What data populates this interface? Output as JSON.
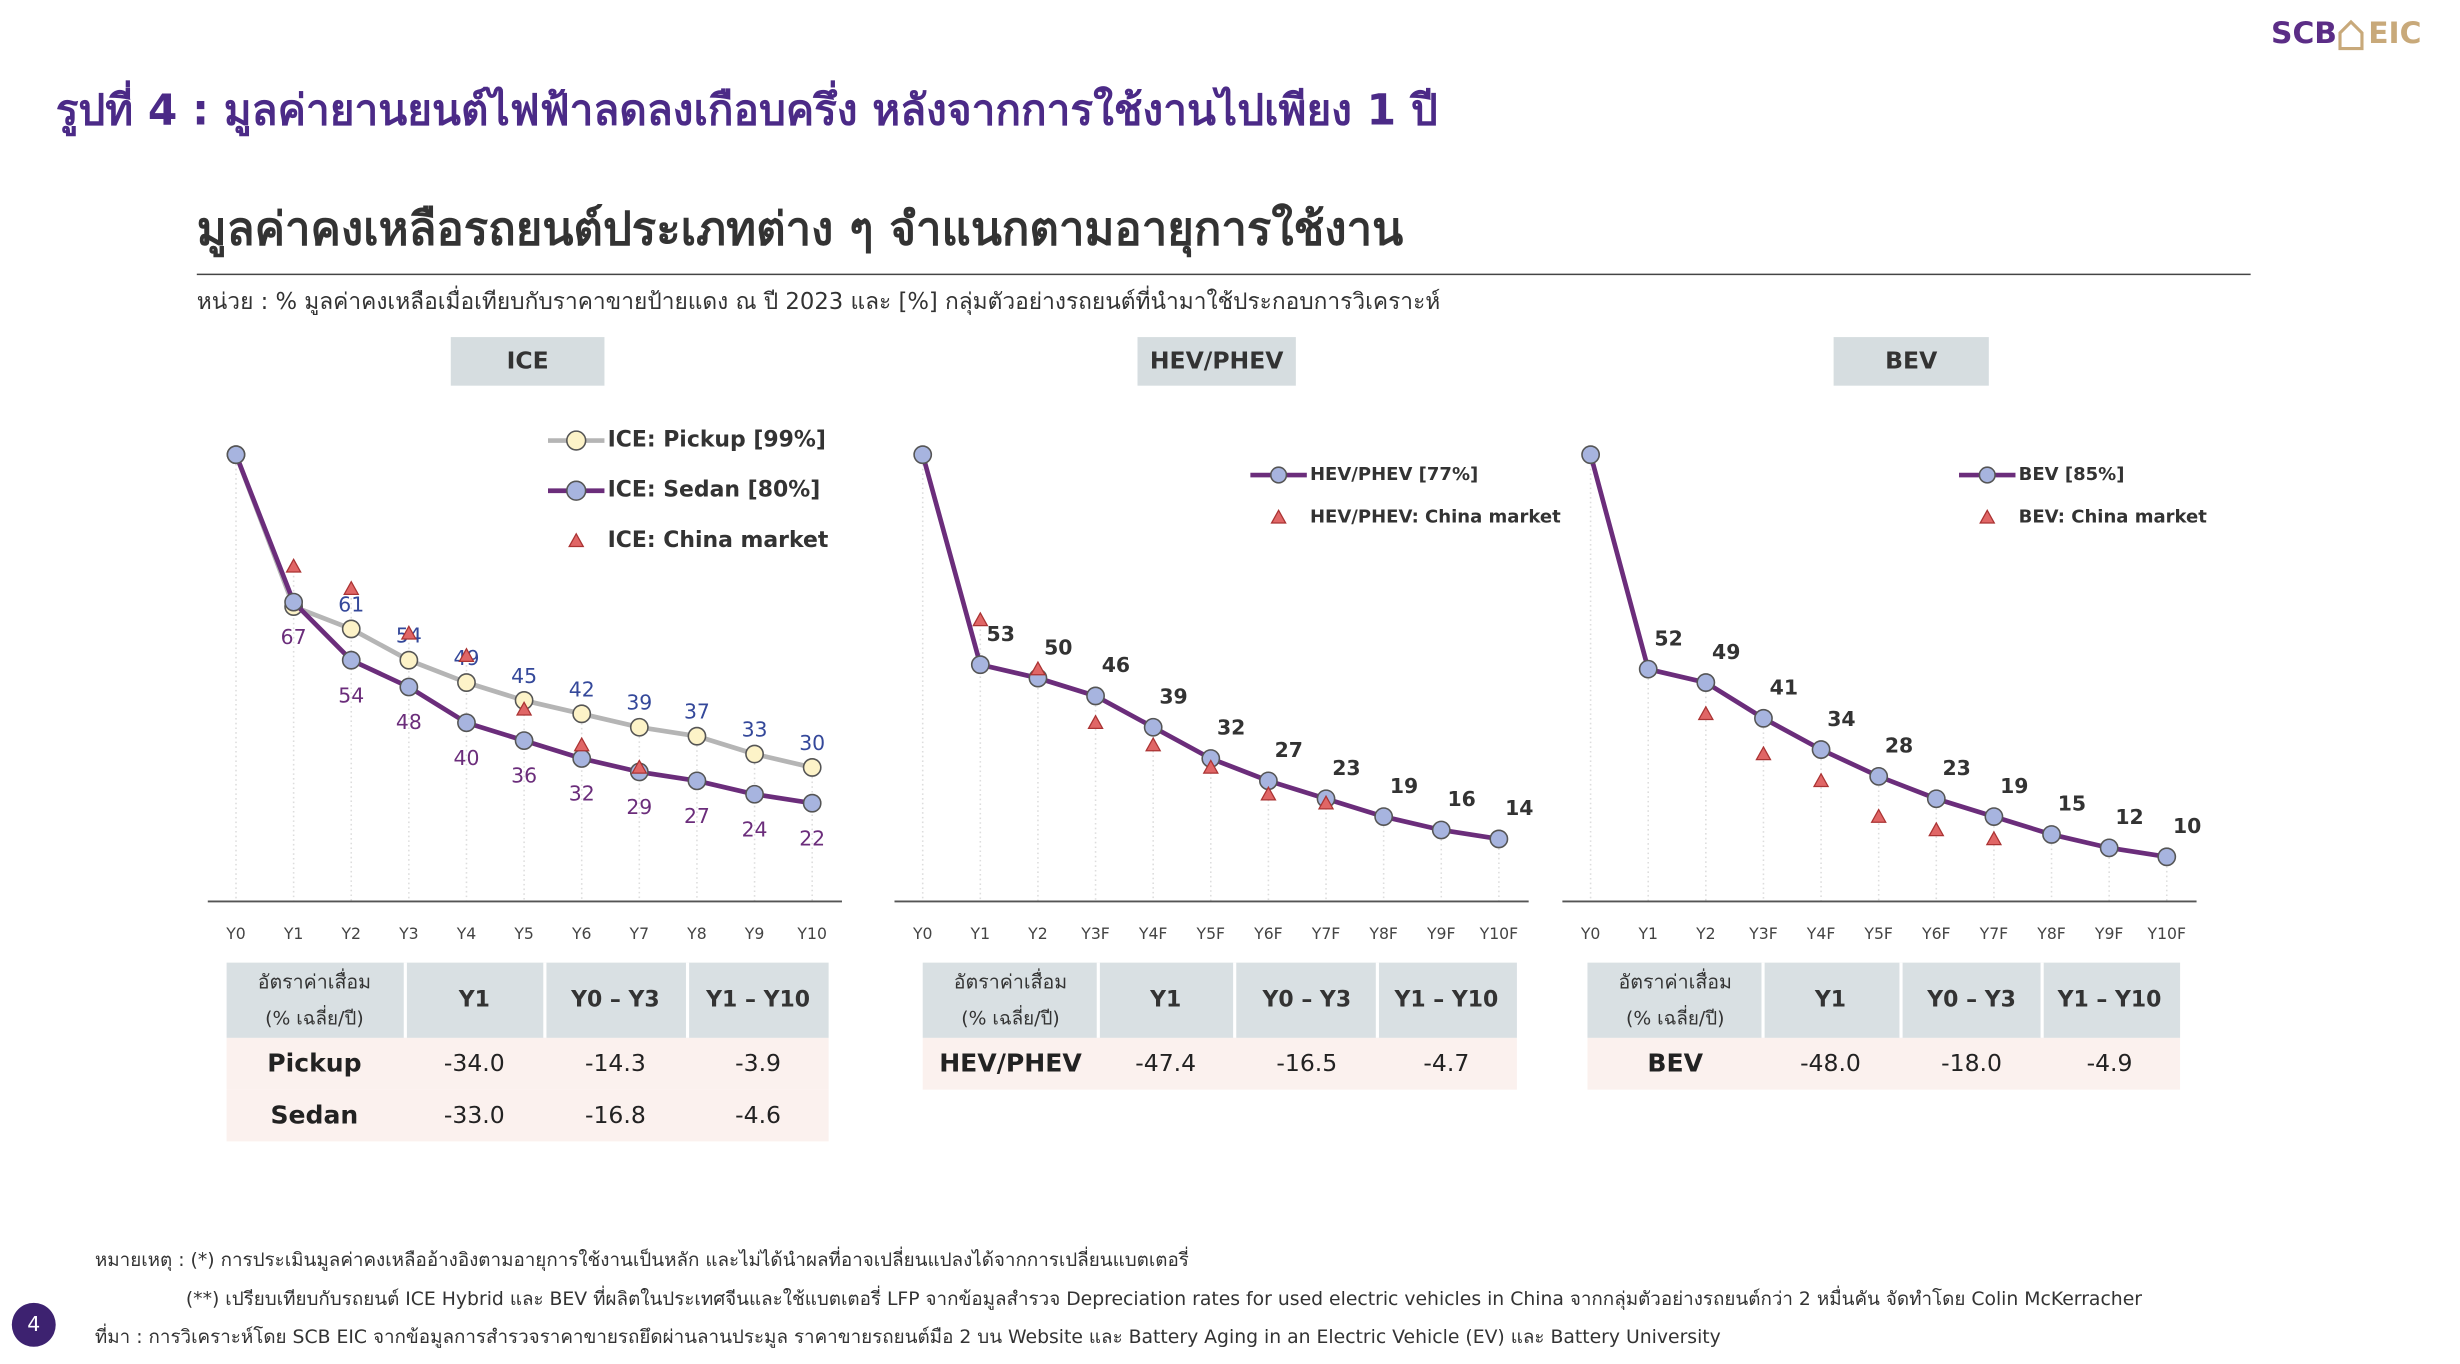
{
  "logo": {
    "left": "SCB",
    "right": "EIC"
  },
  "title": "รูปที่ 4 : มูลค่ายานยนต์ไฟฟ้าลดลงเกือบครึ่ง หลังจากการใช้งานไปเพียง 1 ปี",
  "heading": "มูลค่าคงเหลือรถยนต์ประเภทต่าง ๆ จำแนกตามอายุการใช้งาน",
  "unit": "หน่วย : % มูลค่าคงเหลือเมื่อเทียบกับราคาขายป้ายแดง ณ ปี 2023 และ [%] กลุ่มตัวอย่างรถยนต์ที่นำมาใช้ประกอบการวิเคราะห์",
  "chart_data": [
    {
      "type": "line",
      "title": "ICE",
      "categories": [
        "Y0",
        "Y1",
        "Y2",
        "Y3",
        "Y4",
        "Y5",
        "Y6",
        "Y7",
        "Y8",
        "Y9",
        "Y10"
      ],
      "ylim": [
        0,
        100
      ],
      "series": [
        {
          "name": "ICE: Pickup [99%]",
          "color": "#b5b5b5",
          "marker": "circle",
          "marker_color": "#fdf3c8",
          "label_color": "#34489a",
          "values": [
            100,
            66,
            61,
            54,
            49,
            45,
            42,
            39,
            37,
            33,
            30
          ],
          "value_labels": [
            null,
            null,
            "61",
            "54",
            "49",
            "45",
            "42",
            "39",
            "37",
            "33",
            "30"
          ]
        },
        {
          "name": "ICE: Sedan [80%]",
          "color": "#6b2d7b",
          "marker": "circle",
          "marker_color": "#a7b4df",
          "label_color": "#6b2d7b",
          "values": [
            100,
            67,
            54,
            48,
            40,
            36,
            32,
            29,
            27,
            24,
            22
          ],
          "value_labels": [
            null,
            "67",
            "54",
            "48",
            "40",
            "36",
            "32",
            "29",
            "27",
            "24",
            "22"
          ]
        },
        {
          "name": "ICE: China market",
          "color": "#e06666",
          "marker": "triangle",
          "values": [
            null,
            75,
            70,
            60,
            55,
            43,
            35,
            30,
            null,
            null,
            null
          ]
        }
      ]
    },
    {
      "type": "line",
      "title": "HEV/PHEV",
      "categories": [
        "Y0",
        "Y1",
        "Y2",
        "Y3F",
        "Y4F",
        "Y5F",
        "Y6F",
        "Y7F",
        "Y8F",
        "Y9F",
        "Y10F"
      ],
      "ylim": [
        0,
        100
      ],
      "series": [
        {
          "name": "HEV/PHEV [77%]",
          "color": "#6b2d7b",
          "marker": "circle",
          "marker_color": "#a7b4df",
          "label_color": "#333333",
          "values": [
            100,
            53,
            50,
            46,
            39,
            32,
            27,
            23,
            19,
            16,
            14
          ],
          "value_labels": [
            null,
            "53",
            "50",
            "46",
            "39",
            "32",
            "27",
            "23",
            "19",
            "16",
            "14"
          ]
        },
        {
          "name": "HEV/PHEV: China market",
          "color": "#e06666",
          "marker": "triangle",
          "values": [
            null,
            63,
            52,
            40,
            35,
            30,
            24,
            22,
            null,
            null,
            null
          ]
        }
      ]
    },
    {
      "type": "line",
      "title": "BEV",
      "categories": [
        "Y0",
        "Y1",
        "Y2",
        "Y3F",
        "Y4F",
        "Y5F",
        "Y6F",
        "Y7F",
        "Y8F",
        "Y9F",
        "Y10F"
      ],
      "ylim": [
        0,
        100
      ],
      "series": [
        {
          "name": "BEV [85%]",
          "color": "#6b2d7b",
          "marker": "circle",
          "marker_color": "#a7b4df",
          "label_color": "#333333",
          "values": [
            100,
            52,
            49,
            41,
            34,
            28,
            23,
            19,
            15,
            12,
            10
          ],
          "value_labels": [
            null,
            "52",
            "49",
            "41",
            "34",
            "28",
            "23",
            "19",
            "15",
            "12",
            "10"
          ]
        },
        {
          "name": "BEV: China market",
          "color": "#e06666",
          "marker": "triangle",
          "values": [
            null,
            null,
            42,
            33,
            27,
            19,
            16,
            14,
            null,
            null,
            null
          ]
        }
      ]
    }
  ],
  "tables": [
    {
      "header": [
        "อัตราค่าเสื่อม",
        "(% เฉลี่ย/ปี)",
        "Y1",
        "Y0 – Y3",
        "Y1 – Y10"
      ],
      "rows": [
        [
          "Pickup",
          "-34.0",
          "-14.3",
          "-3.9"
        ],
        [
          "Sedan",
          "-33.0",
          "-16.8",
          "-4.6"
        ]
      ]
    },
    {
      "header": [
        "อัตราค่าเสื่อม",
        "(% เฉลี่ย/ปี)",
        "Y1",
        "Y0 – Y3",
        "Y1 – Y10"
      ],
      "rows": [
        [
          "HEV/PHEV",
          "-47.4",
          "-16.5",
          "-4.7"
        ]
      ]
    },
    {
      "header": [
        "อัตราค่าเสื่อม",
        "(% เฉลี่ย/ปี)",
        "Y1",
        "Y0 – Y3",
        "Y1 – Y10"
      ],
      "rows": [
        [
          "BEV",
          "-48.0",
          "-18.0",
          "-4.9"
        ]
      ]
    }
  ],
  "notes": [
    "หมายเหตุ : (*) การประเมินมูลค่าคงเหลืออ้างอิงตามอายุการใช้งานเป็นหลัก และไม่ได้นำผลที่อาจเปลี่ยนแปลงได้จากการเปลี่ยนแบตเตอรี่",
    "(**)  เปรียบเทียบกับรถยนต์ ICE Hybrid และ BEV ที่ผลิตในประเทศจีนและใช้แบตเตอรี่ LFP จากข้อมูลสำรวจ Depreciation rates for used electric vehicles in China จากกลุ่มตัวอย่างรถยนต์กว่า 2 หมื่นคัน จัดทำโดย Colin McKerracher",
    "ที่มา : การวิเคราะห์โดย SCB EIC จากข้อมูลการสำรวจราคาขายรถยึดผ่านลานประมูล ราคาขายรถยนต์มือ 2 บน Website และ Battery Aging in an Electric Vehicle (EV) และ Battery University"
  ],
  "page_number": "4"
}
